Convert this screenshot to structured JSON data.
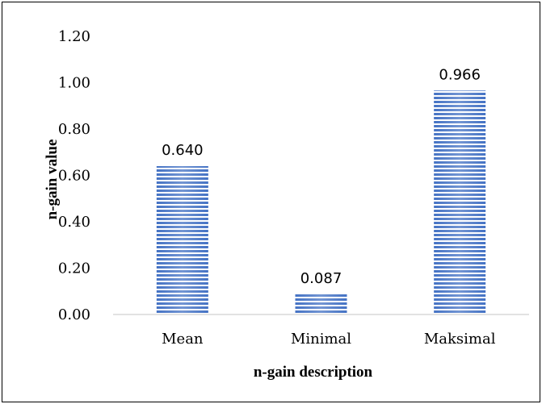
{
  "chart_data": {
    "type": "bar",
    "categories": [
      "Mean",
      "Minimal",
      "Maksimal"
    ],
    "values": [
      0.64,
      0.087,
      0.966
    ],
    "data_labels": [
      "0.640",
      "0.087",
      "0.966"
    ],
    "xlabel": "n-gain description",
    "ylabel": "n-gain value",
    "ylim": [
      0,
      1.2
    ],
    "yticks": [
      "0.00",
      "0.20",
      "0.40",
      "0.60",
      "0.80",
      "1.00",
      "1.20"
    ],
    "grid": false,
    "legend": "none",
    "bar_color": "#4472C4",
    "bar_pattern": "horizontal-stripes"
  }
}
